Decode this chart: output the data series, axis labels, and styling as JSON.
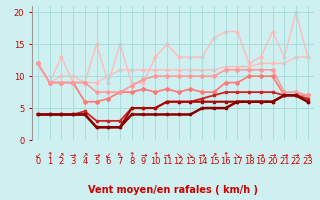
{
  "xlabel": "Vent moyen/en rafales ( km/h )",
  "bg_color": "#cff0f0",
  "grid_color": "#a8dcdc",
  "xlim": [
    -0.5,
    23.5
  ],
  "ylim": [
    0,
    21
  ],
  "yticks": [
    0,
    5,
    10,
    15,
    20
  ],
  "xticks": [
    0,
    1,
    2,
    3,
    4,
    5,
    6,
    7,
    8,
    9,
    10,
    11,
    12,
    13,
    14,
    15,
    16,
    17,
    18,
    19,
    20,
    21,
    22,
    23
  ],
  "x": [
    0,
    1,
    2,
    3,
    4,
    5,
    6,
    7,
    8,
    9,
    10,
    11,
    12,
    13,
    14,
    15,
    16,
    17,
    18,
    19,
    20,
    21,
    22,
    23
  ],
  "series": [
    {
      "y": [
        4,
        4,
        4,
        4,
        4,
        2,
        2,
        2,
        4,
        4,
        4,
        4,
        4,
        4,
        5,
        5,
        5,
        6,
        6,
        6,
        6,
        7,
        7,
        6
      ],
      "color": "#880000",
      "linewidth": 1.8,
      "marker": "s",
      "markersize": 2.0,
      "zorder": 5
    },
    {
      "y": [
        4,
        4,
        4,
        4,
        4,
        2,
        2,
        2,
        5,
        5,
        5,
        6,
        6,
        6,
        6,
        6,
        6,
        6,
        6,
        6,
        6,
        7,
        7,
        6
      ],
      "color": "#aa0000",
      "linewidth": 1.5,
      "marker": "s",
      "markersize": 2.0,
      "zorder": 4
    },
    {
      "y": [
        4,
        4,
        4,
        4,
        4.5,
        3,
        3,
        3,
        5,
        5,
        5,
        6,
        6,
        6,
        6.5,
        7,
        7.5,
        7.5,
        7.5,
        7.5,
        7.5,
        7,
        7,
        6.5
      ],
      "color": "#cc2222",
      "linewidth": 1.3,
      "marker": "s",
      "markersize": 1.5,
      "zorder": 3
    },
    {
      "y": [
        12,
        9,
        9,
        9,
        6,
        6,
        6.5,
        7.5,
        7.5,
        8,
        7.5,
        8,
        7.5,
        8,
        7.5,
        7.5,
        9,
        9,
        10,
        10,
        10,
        7,
        7,
        7
      ],
      "color": "#ff7777",
      "linewidth": 1.2,
      "marker": "D",
      "markersize": 2.0,
      "zorder": 2
    },
    {
      "y": [
        12,
        9,
        9,
        9,
        9,
        7.5,
        7.5,
        7.5,
        8.5,
        9.5,
        10,
        10,
        10,
        10,
        10,
        10,
        11,
        11,
        11,
        11,
        11,
        7.5,
        7.5,
        7
      ],
      "color": "#ff9999",
      "linewidth": 1.2,
      "marker": "D",
      "markersize": 2.0,
      "zorder": 2
    },
    {
      "y": [
        12,
        9,
        10,
        10,
        9,
        9,
        10,
        11,
        11,
        11,
        11,
        11,
        11,
        11,
        11,
        11,
        11.5,
        11.5,
        11.5,
        12,
        12,
        12,
        13,
        13
      ],
      "color": "#ffbbbb",
      "linewidth": 1.0,
      "marker": "D",
      "markersize": 1.8,
      "zorder": 1
    },
    {
      "y": [
        12,
        9,
        13,
        9,
        9,
        15,
        9,
        15,
        9,
        9,
        13,
        15,
        13,
        13,
        13,
        16,
        17,
        17,
        12,
        13,
        17,
        13,
        20,
        13
      ],
      "color": "#ffbbbb",
      "linewidth": 1.0,
      "marker": "D",
      "markersize": 1.8,
      "zorder": 1
    }
  ],
  "wind_arrows": [
    "↙",
    "↑",
    "↗",
    "→",
    "↗",
    "→",
    "↙",
    "↖",
    "↑",
    "→",
    "↑",
    "→",
    "↘",
    "↘",
    "→",
    "↗",
    "↑",
    "↘",
    "→",
    "→",
    "→",
    "→",
    "→",
    "→"
  ],
  "arrow_color": "#cc0000",
  "text_color": "#cc0000",
  "xlabel_color": "#cc0000",
  "xlabel_fontsize": 7,
  "tick_fontsize": 6
}
